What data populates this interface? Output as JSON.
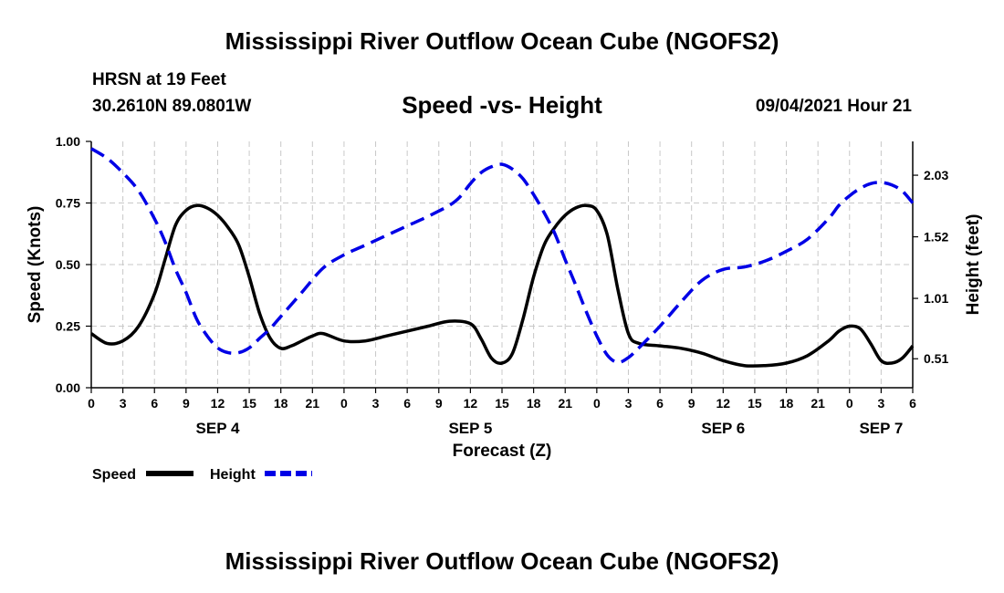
{
  "page": {
    "title_top": "Mississippi River Outflow Ocean Cube (NGOFS2)",
    "title_bottom": "Mississippi River Outflow Ocean Cube (NGOFS2)",
    "station_line": "HRSN at 19 Feet",
    "coords_line": "30.2610N  89.0801W",
    "subtitle": "Speed -vs- Height",
    "datetime": "09/04/2021 Hour 21"
  },
  "chart_data": {
    "type": "line",
    "title": "Speed -vs- Height",
    "xlabel": "Forecast (Z)",
    "ylabel": "Speed (Knots)",
    "y2label": "Height (feet)",
    "x_range_hours": [
      0,
      78
    ],
    "x_tick_labels": [
      "0",
      "3",
      "6",
      "9",
      "12",
      "15",
      "18",
      "21",
      "0",
      "3",
      "6",
      "9",
      "12",
      "15",
      "18",
      "21",
      "0",
      "3",
      "6",
      "9",
      "12",
      "15",
      "18",
      "21",
      "0",
      "3",
      "6"
    ],
    "date_labels": [
      {
        "label": "SEP 4",
        "hour": 12
      },
      {
        "label": "SEP 5",
        "hour": 36
      },
      {
        "label": "SEP 6",
        "hour": 60
      },
      {
        "label": "SEP 7",
        "hour": 75
      }
    ],
    "ylim": [
      0,
      1.0
    ],
    "y_ticks": [
      0.0,
      0.25,
      0.5,
      0.75,
      1.0
    ],
    "y_tick_labels": [
      "0.00",
      "0.25",
      "0.50",
      "0.75",
      "1.00"
    ],
    "y2lim": [
      0.27,
      2.31
    ],
    "y2_ticks": [
      0.51,
      1.01,
      1.52,
      2.03
    ],
    "y2_tick_labels": [
      "0.51",
      "1.01",
      "1.52",
      "2.03"
    ],
    "grid": true,
    "legend": [
      {
        "name": "Speed",
        "color": "#000000",
        "style": "solid"
      },
      {
        "name": "Height",
        "color": "#0000e6",
        "style": "dashed"
      }
    ],
    "series": [
      {
        "name": "Speed",
        "axis": "left",
        "color": "#000000",
        "style": "solid",
        "x": [
          0,
          1.5,
          3,
          4.5,
          6,
          7,
          8,
          9,
          10,
          11,
          12,
          13,
          14,
          15,
          16,
          17,
          18,
          19,
          20,
          21,
          22,
          24,
          26,
          28,
          30,
          32,
          34,
          36,
          37,
          38,
          39,
          40,
          41,
          42,
          43,
          44,
          45,
          46,
          47,
          48,
          49,
          50,
          51,
          52,
          54,
          56,
          58,
          60,
          62,
          64,
          66,
          68,
          70,
          71,
          72,
          73,
          74,
          75,
          76,
          77,
          78
        ],
        "values": [
          0.22,
          0.18,
          0.19,
          0.25,
          0.38,
          0.52,
          0.66,
          0.72,
          0.74,
          0.73,
          0.7,
          0.65,
          0.58,
          0.45,
          0.3,
          0.2,
          0.16,
          0.17,
          0.19,
          0.21,
          0.22,
          0.19,
          0.19,
          0.21,
          0.23,
          0.25,
          0.27,
          0.26,
          0.2,
          0.12,
          0.1,
          0.14,
          0.28,
          0.45,
          0.58,
          0.65,
          0.7,
          0.73,
          0.74,
          0.72,
          0.62,
          0.4,
          0.22,
          0.18,
          0.17,
          0.16,
          0.14,
          0.11,
          0.09,
          0.09,
          0.1,
          0.13,
          0.19,
          0.23,
          0.25,
          0.24,
          0.18,
          0.11,
          0.1,
          0.12,
          0.17
        ]
      },
      {
        "name": "Height",
        "axis": "right",
        "color": "#0000e6",
        "style": "dashed",
        "x": [
          0,
          1.5,
          3,
          4.5,
          6,
          7,
          8,
          9,
          10,
          11,
          12,
          13,
          14,
          15,
          16,
          17,
          18,
          20,
          22,
          24,
          26,
          28,
          30,
          32,
          34,
          35,
          36,
          37,
          38,
          39,
          40,
          41,
          42,
          43,
          44,
          45,
          46,
          47,
          48,
          49,
          50,
          51,
          52,
          54,
          56,
          58,
          60,
          62,
          64,
          66,
          68,
          70,
          71,
          72,
          73,
          74,
          75,
          76,
          77,
          78
        ],
        "values": [
          2.25,
          2.17,
          2.05,
          1.9,
          1.67,
          1.48,
          1.25,
          1.06,
          0.84,
          0.7,
          0.6,
          0.56,
          0.56,
          0.6,
          0.68,
          0.76,
          0.86,
          1.06,
          1.26,
          1.37,
          1.45,
          1.53,
          1.61,
          1.69,
          1.78,
          1.85,
          1.96,
          2.05,
          2.1,
          2.12,
          2.08,
          2.0,
          1.87,
          1.72,
          1.55,
          1.33,
          1.12,
          0.9,
          0.7,
          0.54,
          0.48,
          0.52,
          0.6,
          0.78,
          0.98,
          1.16,
          1.25,
          1.27,
          1.32,
          1.4,
          1.5,
          1.67,
          1.78,
          1.86,
          1.92,
          1.96,
          1.97,
          1.95,
          1.9,
          1.8
        ]
      }
    ]
  }
}
